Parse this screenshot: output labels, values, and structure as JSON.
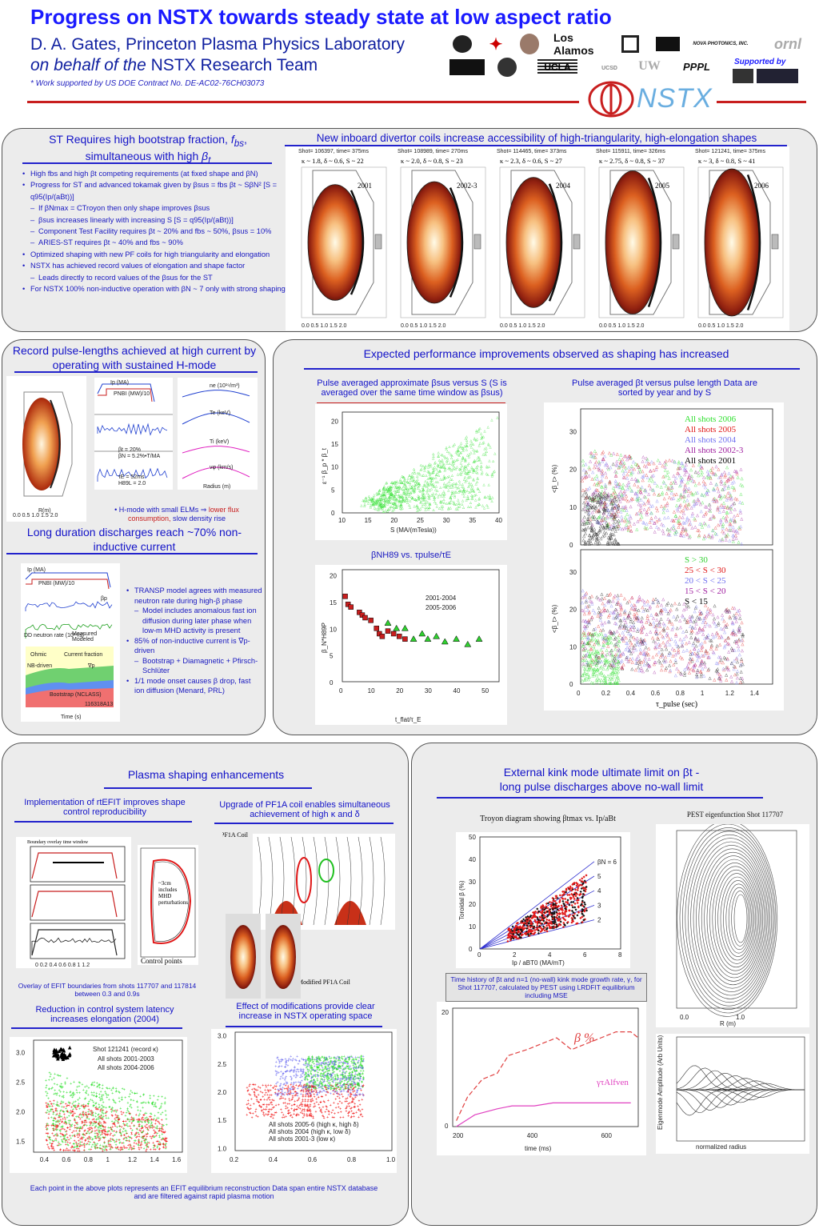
{
  "header": {
    "title": "Progress on NSTX towards steady state at low aspect ratio",
    "author": "D. A. Gates, Princeton Plasma Physics Laboratory",
    "behalf_italic": "on behalf of the",
    "behalf_rest": "NSTX Research Team",
    "support": "* Work supported by US DOE Contract No. DE-AC02-76CH03073",
    "supported_by": "Supported by",
    "logos": [
      "Los Alamos",
      "NOVA PHOTONICS, INC.",
      "ornl",
      "UCLA",
      "UCSD",
      "UW",
      "PPPL",
      "NSTX"
    ]
  },
  "p1": {
    "title_a": "ST Requires high bootstrap fraction,",
    "title_b": "simultaneous with high",
    "bullets": [
      "High fbs and high βt competing requirements (at fixed shape and βN)",
      "Progress for ST and advanced tokamak given by βsus = fbs βt ~ SβN²   [S = q95(Ip/(aBt))]",
      "If βNmax = CTroyon then only shape improves βsus",
      "βsus increases linearly with increasing S [S = q95(Ip/(aBt))]",
      "Component Test Facility requires βt ~ 20% and fbs ~ 50%, βsus = 10%",
      "ARIES-ST requires βt ~ 40% and fbs ~ 90%",
      "Optimized shaping with new PF coils for high triangularity and elongation",
      "NSTX has achieved record values of elongation and shape factor",
      "Leads directly to record values of the βsus for the ST",
      "For NSTX 100% non-inductive operation with βN ~ 7 only with strong shaping"
    ]
  },
  "p2": {
    "title": "New inboard divertor coils increase accessibility of high-triangularity, high-elongation shapes",
    "shapes": [
      {
        "shot": "Shot= 106397, time= 375ms",
        "params": "κ ~ 1.8, δ ~ 0.6, S ~ 22",
        "year": "2001"
      },
      {
        "shot": "Shot= 108989, time= 270ms",
        "params": "κ ~ 2.0, δ ~ 0.8, S ~ 23",
        "year": "2002-3"
      },
      {
        "shot": "Shot= 114465, time= 373ms",
        "params": "κ ~ 2.3, δ ~ 0.6, S ~ 27",
        "year": "2004"
      },
      {
        "shot": "Shot= 115911, time= 326ms",
        "params": "κ ~ 2.75, δ ~ 0.8, S ~ 37",
        "year": "2005"
      },
      {
        "shot": "Shot= 121241, time= 375ms",
        "params": "κ ~ 3, δ ~ 0.8, S ~ 41",
        "year": "2006"
      }
    ]
  },
  "p3": {
    "title": "Record pulse-lengths achieved at high current by operating with sustained H-mode",
    "hmode_a": "H-mode with small ELMs ⇒",
    "hmode_b": "lower flux consumption,",
    "hmode_c": "slow density rise",
    "labels": [
      "Ip (MA)",
      "PNBI (MW)/10",
      "βt = 20%",
      "βN = 5.2%•T/MA",
      "τE = 52ms",
      "H89L = 2.0",
      "ne (10¹⁹/m³)",
      "Te (keV)",
      "Ti (keV)",
      "vφ (km/s)",
      "Time (s)",
      "Radius (m)",
      "R(m)"
    ]
  },
  "p4": {
    "title": "Long duration discharges reach ~70% non-inductive current",
    "bullets": [
      "TRANSP model agrees with measured neutron rate during high-β phase",
      "Model includes anomalous fast ion diffusion during later phase when low-m MHD activity is present",
      "85% of non-inductive current is ∇p-driven",
      "Bootstrap + Diamagnetic + Pfirsch-Schlüter",
      "1/1 mode onset causes β drop, fast ion diffusion (Menard, PRL)"
    ],
    "fig_labels": [
      "Ip (MA)",
      "PNBI (MW)/10",
      "βp",
      "DD neutron rate (10¹⁴/s)",
      "Measured",
      "Modeled",
      "Ohmic",
      "Current fraction",
      "NB-driven",
      "∇p",
      "Bootstrap (NCLASS)",
      "116318A13",
      "Time (s)"
    ]
  },
  "p5": {
    "title": "Expected performance improvements observed as shaping has increased",
    "sub1": "Pulse averaged approximate βsus versus S (S is averaged over the same time window as βsus)",
    "sub2": "Pulse averaged βt versus pulse length Data are sorted by year and by S",
    "sub3": "βNH89 vs. τpulse/τE",
    "fig1_xlabel": "S (MA/(mTesla))",
    "fig1_ylabel": "ε⁻¹ β_p * β_t",
    "fig2_xlabel": "t_flat/τ_E",
    "fig2_ylabel": "β_N*H89P",
    "fig2_legend": [
      "2001-2004",
      "2005-2006"
    ],
    "fig3_legend_years": [
      "All shots 2006",
      "All shots 2005",
      "All shots 2004",
      "All shots 2002-3",
      "All shots 2001"
    ],
    "fig3_legend_s": [
      "S > 30",
      "25 < S < 30",
      "20 < S < 25",
      "15 < S < 20",
      "S < 15"
    ],
    "fig3_ylabel": "<β_t> (%)",
    "fig3_xlabel": "τ_pulse (sec)"
  },
  "p6": {
    "title": "Plasma shaping enhancements",
    "sub_a": "Implementation of rtEFIT improves shape control reproducibility",
    "sub_b": "Upgrade of PF1A coil enables simultaneous achievement of high κ and δ",
    "sub_c": "Reduction in control system latency increases elongation (2004)",
    "sub_d": "Effect of modifications provide clear increase in NSTX operating space",
    "cap_a": "Overlay of EFIT boundaries from shots 117707 and 117814 between 0.3 and 0.9s",
    "boundary_overlay": "Boundary overlay time window",
    "perturb": "~3cm includes MHD perturbations",
    "control_points": "Control points",
    "old_coil": "Old PF1A Coil",
    "new_coil": "Modified PF1A Coil",
    "legend_c": [
      "Shot 121241 (record κ)",
      "All shots 2001-2003",
      "All shots 2004-2006"
    ],
    "legend_d": [
      "All shots 2005-6 (high κ, high δ)",
      "All shots 2004 (high κ, low δ)",
      "All shots 2001-3 (low κ)"
    ],
    "footer": "Each point in the above plots represents an EFIT equilibrium reconstruction Data span entire NSTX database and are filtered against rapid plasma motion"
  },
  "p7": {
    "title_a": "External kink mode ultimate limit on βt -",
    "title_b": "long pulse discharges above no-wall limit",
    "troyon": "Troyon diagram showing βtmax vs. Ip/aBt",
    "pest": "PEST eigenfunction Shot 117707",
    "bn_labels": [
      "βN = 6",
      "5",
      "4",
      "3",
      "2"
    ],
    "troyon_xlabel": "Ip / aBT0 (MA/mT)",
    "troyon_ylabel": "Toroidal β (%)",
    "time_cap": "Time history of βt and n=1 (no-wall) kink mode growth rate, γ, for Shot 117707, calculated by PEST using LRDFIT equilibrium including MSE",
    "beta_label": "β %",
    "gamma_label": "γτAlfven",
    "time_xlabel": "time (ms)",
    "eig_ylabel": "Eigenmode Amplitude (Arb Units)",
    "eig_xlabel": "normalized radius"
  },
  "colors": {
    "title": "#1a1aff",
    "accent_red": "#c81e1e",
    "panel": "#ececec"
  }
}
